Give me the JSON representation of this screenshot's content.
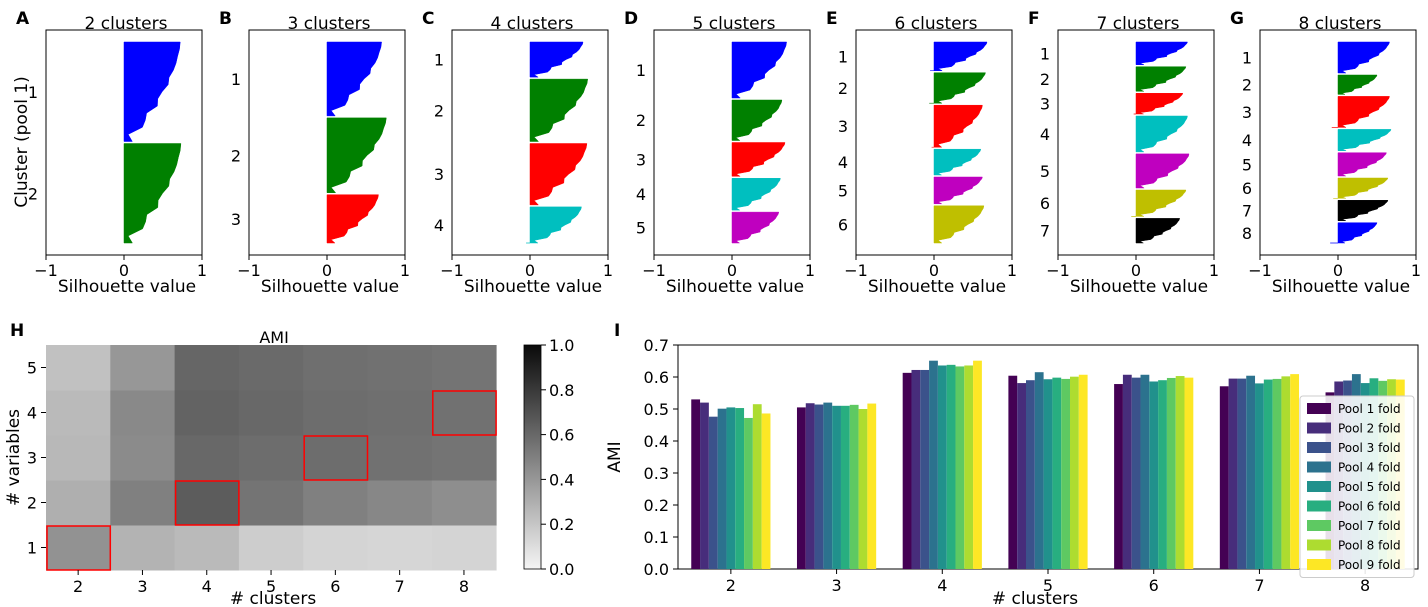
{
  "chart_data": [
    {
      "type": "bar",
      "subtype": "silhouette",
      "panel": "A",
      "title": "2 clusters",
      "ylabel": "Cluster (pool 1)",
      "xlabel": "Silhouette value",
      "xlim": [
        -1,
        1
      ],
      "xticks": [
        "−1",
        "0",
        "1"
      ],
      "clusters": [
        {
          "label": "1",
          "color": "#0000ff",
          "size": 100,
          "max": 0.72,
          "min": 0.0
        },
        {
          "label": "2",
          "color": "#008000",
          "size": 100,
          "max": 0.73,
          "min": 0.0
        }
      ]
    },
    {
      "type": "bar",
      "subtype": "silhouette",
      "panel": "B",
      "title": "3 clusters",
      "xlabel": "Silhouette value",
      "xlim": [
        -1,
        1
      ],
      "xticks": [
        "−1",
        "0",
        "1"
      ],
      "clusters": [
        {
          "label": "1",
          "color": "#0000ff",
          "size": 75,
          "max": 0.7,
          "min": 0.0
        },
        {
          "label": "2",
          "color": "#008000",
          "size": 76,
          "max": 0.76,
          "min": 0.0
        },
        {
          "label": "3",
          "color": "#ff0000",
          "size": 49,
          "max": 0.66,
          "min": 0.0
        }
      ]
    },
    {
      "type": "bar",
      "subtype": "silhouette",
      "panel": "C",
      "title": "4 clusters",
      "xlabel": "Silhouette value",
      "xlim": [
        -1,
        1
      ],
      "xticks": [
        "−1",
        "0",
        "1"
      ],
      "clusters": [
        {
          "label": "1",
          "color": "#0000ff",
          "size": 36,
          "max": 0.68,
          "min": 0.0
        },
        {
          "label": "2",
          "color": "#008000",
          "size": 64,
          "max": 0.74,
          "min": 0.0
        },
        {
          "label": "3",
          "color": "#ff0000",
          "size": 63,
          "max": 0.73,
          "min": 0.0
        },
        {
          "label": "4",
          "color": "#00bfbf",
          "size": 37,
          "max": 0.66,
          "min": -0.05
        }
      ]
    },
    {
      "type": "bar",
      "subtype": "silhouette",
      "panel": "D",
      "title": "5 clusters",
      "xlabel": "Silhouette value",
      "xlim": [
        -1,
        1
      ],
      "xticks": [
        "−1",
        "0",
        "1"
      ],
      "clusters": [
        {
          "label": "1",
          "color": "#0000ff",
          "size": 58,
          "max": 0.7,
          "min": 0.0
        },
        {
          "label": "2",
          "color": "#008000",
          "size": 42,
          "max": 0.64,
          "min": 0.0
        },
        {
          "label": "3",
          "color": "#ff0000",
          "size": 35,
          "max": 0.68,
          "min": 0.0
        },
        {
          "label": "4",
          "color": "#00bfbf",
          "size": 33,
          "max": 0.62,
          "min": 0.0
        },
        {
          "label": "5",
          "color": "#bf00bf",
          "size": 32,
          "max": 0.6,
          "min": 0.0
        }
      ]
    },
    {
      "type": "bar",
      "subtype": "silhouette",
      "panel": "E",
      "title": "6 clusters",
      "xlabel": "Silhouette value",
      "xlim": [
        -1,
        1
      ],
      "xticks": [
        "−1",
        "0",
        "1"
      ],
      "clusters": [
        {
          "label": "1",
          "color": "#0000ff",
          "size": 30,
          "max": 0.68,
          "min": -0.05
        },
        {
          "label": "2",
          "color": "#008000",
          "size": 32,
          "max": 0.66,
          "min": -0.06
        },
        {
          "label": "3",
          "color": "#ff0000",
          "size": 44,
          "max": 0.62,
          "min": -0.03
        },
        {
          "label": "4",
          "color": "#00bfbf",
          "size": 27,
          "max": 0.6,
          "min": 0.0
        },
        {
          "label": "5",
          "color": "#bf00bf",
          "size": 28,
          "max": 0.62,
          "min": 0.0
        },
        {
          "label": "6",
          "color": "#bfbf00",
          "size": 39,
          "max": 0.64,
          "min": 0.0
        }
      ]
    },
    {
      "type": "bar",
      "subtype": "silhouette",
      "panel": "F",
      "title": "7 clusters",
      "xlabel": "Silhouette value",
      "xlim": [
        -1,
        1
      ],
      "xticks": [
        "−1",
        "0",
        "1"
      ],
      "clusters": [
        {
          "label": "1",
          "color": "#0000ff",
          "size": 24,
          "max": 0.66,
          "min": 0.0
        },
        {
          "label": "2",
          "color": "#008000",
          "size": 26,
          "max": 0.64,
          "min": 0.0
        },
        {
          "label": "3",
          "color": "#ff0000",
          "size": 22,
          "max": 0.6,
          "min": -0.03
        },
        {
          "label": "4",
          "color": "#00bfbf",
          "size": 38,
          "max": 0.66,
          "min": 0.0
        },
        {
          "label": "5",
          "color": "#bf00bf",
          "size": 36,
          "max": 0.68,
          "min": 0.0
        },
        {
          "label": "6",
          "color": "#bfbf00",
          "size": 28,
          "max": 0.64,
          "min": -0.06
        },
        {
          "label": "7",
          "color": "#000000",
          "size": 26,
          "max": 0.56,
          "min": 0.0
        }
      ]
    },
    {
      "type": "bar",
      "subtype": "silhouette",
      "panel": "G",
      "title": "8 clusters",
      "xlabel": "Silhouette value",
      "xlim": [
        -1,
        1
      ],
      "xticks": [
        "−1",
        "0",
        "1"
      ],
      "clusters": [
        {
          "label": "1",
          "color": "#0000ff",
          "size": 32,
          "max": 0.66,
          "min": 0.0
        },
        {
          "label": "2",
          "color": "#008000",
          "size": 20,
          "max": 0.5,
          "min": 0.0
        },
        {
          "label": "3",
          "color": "#ff0000",
          "size": 32,
          "max": 0.66,
          "min": -0.08
        },
        {
          "label": "4",
          "color": "#00bfbf",
          "size": 22,
          "max": 0.68,
          "min": 0.0
        },
        {
          "label": "5",
          "color": "#bf00bf",
          "size": 24,
          "max": 0.62,
          "min": 0.0
        },
        {
          "label": "6",
          "color": "#bfbf00",
          "size": 21,
          "max": 0.64,
          "min": -0.06
        },
        {
          "label": "7",
          "color": "#000000",
          "size": 21,
          "max": 0.64,
          "min": 0.0
        },
        {
          "label": "8",
          "color": "#0000ff",
          "size": 21,
          "max": 0.5,
          "min": -0.1
        }
      ]
    },
    {
      "type": "heatmap",
      "panel": "H",
      "title": "AMI",
      "xlabel": "# clusters",
      "ylabel": "# variables",
      "x": [
        "2",
        "3",
        "4",
        "5",
        "6",
        "7",
        "8"
      ],
      "y": [
        "1",
        "2",
        "3",
        "4",
        "5"
      ],
      "values": [
        [
          0.42,
          0.28,
          0.25,
          0.17,
          0.14,
          0.13,
          0.14
        ],
        [
          0.3,
          0.5,
          0.65,
          0.55,
          0.5,
          0.47,
          0.44
        ],
        [
          0.26,
          0.45,
          0.6,
          0.58,
          0.58,
          0.56,
          0.55
        ],
        [
          0.25,
          0.46,
          0.62,
          0.6,
          0.58,
          0.57,
          0.56
        ],
        [
          0.22,
          0.4,
          0.61,
          0.59,
          0.57,
          0.56,
          0.55
        ]
      ],
      "highlighted": [
        [
          "2",
          "1"
        ],
        [
          "4",
          "2"
        ],
        [
          "6",
          "3"
        ],
        [
          "8",
          "4"
        ]
      ],
      "colorbar": {
        "min": 0.0,
        "max": 1.0,
        "ticks": [
          "0.0",
          "0.2",
          "0.4",
          "0.6",
          "0.8",
          "1.0"
        ]
      },
      "colormap": "greys"
    },
    {
      "type": "bar",
      "panel": "I",
      "xlabel": "# clusters",
      "ylabel": "AMI",
      "ylim": [
        0.0,
        0.7
      ],
      "yticks": [
        "0.0",
        "0.1",
        "0.2",
        "0.3",
        "0.4",
        "0.5",
        "0.6",
        "0.7"
      ],
      "categories": [
        "2",
        "3",
        "4",
        "5",
        "6",
        "7",
        "8"
      ],
      "legend_position": "lower-right",
      "series": [
        {
          "name": "Pool 1 fold",
          "color": "#440154",
          "values": [
            0.53,
            0.505,
            0.613,
            0.604,
            0.578,
            0.571,
            0.552
          ]
        },
        {
          "name": "Pool 2 fold",
          "color": "#472d7b",
          "values": [
            0.52,
            0.518,
            0.622,
            0.581,
            0.607,
            0.595,
            0.586
          ]
        },
        {
          "name": "Pool 3 fold",
          "color": "#3b528b",
          "values": [
            0.476,
            0.514,
            0.622,
            0.59,
            0.598,
            0.595,
            0.589
          ]
        },
        {
          "name": "Pool 4 fold",
          "color": "#2c728e",
          "values": [
            0.501,
            0.52,
            0.651,
            0.615,
            0.607,
            0.604,
            0.609
          ]
        },
        {
          "name": "Pool 5 fold",
          "color": "#21918c",
          "values": [
            0.505,
            0.51,
            0.636,
            0.593,
            0.586,
            0.58,
            0.581
          ]
        },
        {
          "name": "Pool 6 fold",
          "color": "#28ae80",
          "values": [
            0.503,
            0.51,
            0.638,
            0.598,
            0.59,
            0.592,
            0.596
          ]
        },
        {
          "name": "Pool 7 fold",
          "color": "#5ec962",
          "values": [
            0.472,
            0.513,
            0.633,
            0.594,
            0.597,
            0.594,
            0.588
          ]
        },
        {
          "name": "Pool 8 fold",
          "color": "#addc30",
          "values": [
            0.515,
            0.5,
            0.636,
            0.601,
            0.603,
            0.602,
            0.593
          ]
        },
        {
          "name": "Pool 9 fold",
          "color": "#fde725",
          "values": [
            0.486,
            0.517,
            0.651,
            0.607,
            0.598,
            0.609,
            0.592
          ]
        }
      ]
    }
  ]
}
